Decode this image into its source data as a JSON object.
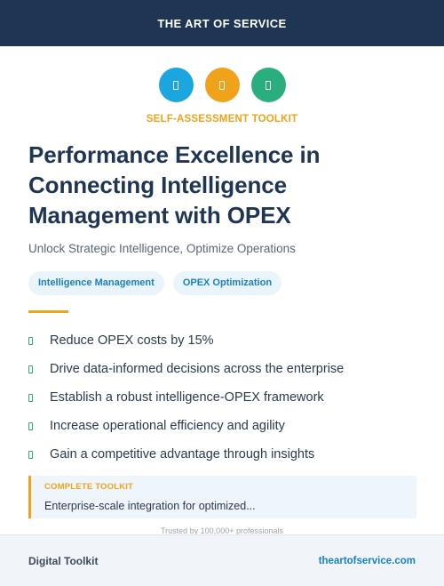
{
  "header": {
    "brand": "THE ART OF SERVICE"
  },
  "icons": [
    {
      "name": "document-icon",
      "color": "#1ca6df"
    },
    {
      "name": "clipboard-icon",
      "color": "#f0a21b"
    },
    {
      "name": "checklist-icon",
      "color": "#2aae7e"
    }
  ],
  "eyebrow": "SELF-ASSESSMENT TOOLKIT",
  "title": "Performance Excellence in Connecting Intelligence Management with OPEX",
  "subtitle": "Unlock Strategic Intelligence, Optimize Operations",
  "tags": [
    "Intelligence Management",
    "OPEX Optimization"
  ],
  "benefits": [
    "Reduce OPEX costs by 15%",
    "Drive data-informed decisions across the enterprise",
    "Establish a robust intelligence-OPEX framework",
    "Increase operational efficiency and agility",
    "Gain a competitive advantage through insights"
  ],
  "callout": {
    "label": "COMPLETE TOOLKIT",
    "text": "Enterprise-scale integration for optimized..."
  },
  "trust": "Trusted by 100,000+ professionals",
  "footer": {
    "left": "Digital Toolkit",
    "right": "theartofservice.com"
  },
  "colors": {
    "navy": "#1e3553",
    "accent_orange": "#f0a21b",
    "accent_blue": "#1a80c4",
    "accent_green": "#2aae7e"
  }
}
